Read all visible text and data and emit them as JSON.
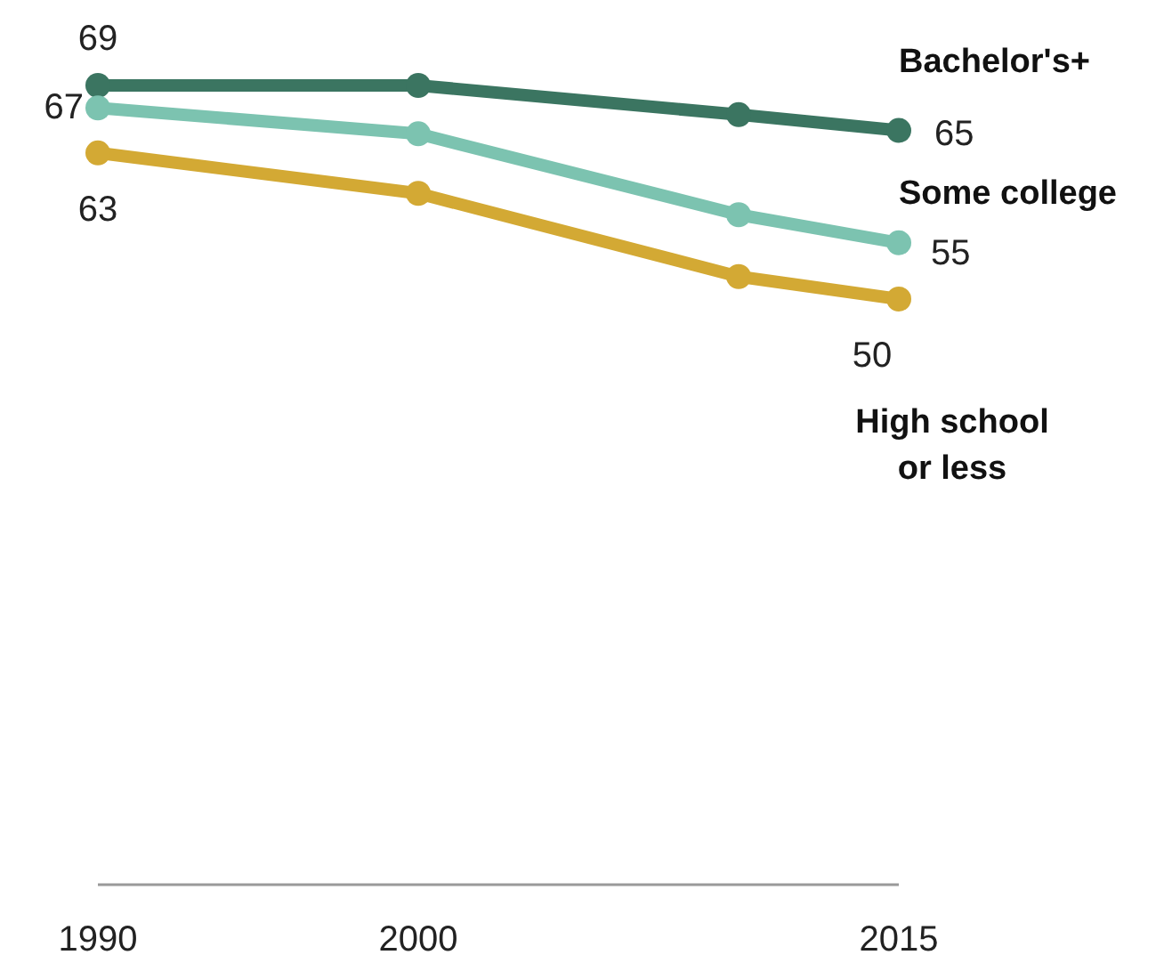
{
  "chart_data": {
    "type": "line",
    "x": [
      1990,
      2000,
      2010,
      2015
    ],
    "xlim": [
      1990,
      2015
    ],
    "xticks": [
      1990,
      2000,
      2015
    ],
    "tick_labels": "x",
    "marker": "circle",
    "line_style": "solid",
    "series": [
      {
        "name": "Bachelor's+",
        "color": "#3b7561",
        "values": [
          69,
          69,
          66.4,
          65
        ],
        "value_labels": [
          "69",
          null,
          null,
          "65"
        ]
      },
      {
        "name": "Some college",
        "color": "#7cc3b0",
        "values": [
          67,
          64.7,
          57.5,
          55
        ],
        "value_labels": [
          "67",
          null,
          null,
          "55"
        ]
      },
      {
        "name": "High school or less",
        "color": "#d3a934",
        "values": [
          63,
          59.4,
          52,
          50
        ],
        "value_labels": [
          "63",
          null,
          null,
          "50"
        ]
      }
    ]
  }
}
